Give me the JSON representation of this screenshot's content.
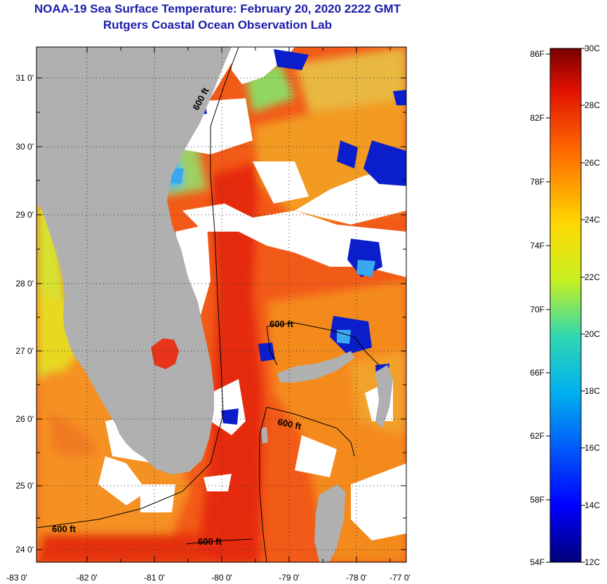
{
  "header": {
    "title": "NOAA-19 Sea Surface Temperature:  February 20, 2020 2222 GMT",
    "subtitle": "Rutgers Coastal Ocean Observation Lab"
  },
  "map": {
    "lat_labels": [
      "31 0'",
      "30 0'",
      "29 0'",
      "28 0'",
      "27 0'",
      "26 0'",
      "25 0'",
      "24 0'"
    ],
    "lon_labels": [
      "-83 0'",
      "-82 0'",
      "-81 0'",
      "-80 0'",
      "-79 0'",
      "-78 0'",
      "-77 0'"
    ],
    "contour_labels": [
      "600 ft",
      "600 ft",
      "600 ft",
      "600 ft",
      "600 ft"
    ],
    "land_color": "#b0b0b0",
    "cloud_color": "#ffffff"
  },
  "colorbar": {
    "fahrenheit_labels": [
      "86F",
      "82F",
      "78F",
      "74F",
      "70F",
      "66F",
      "62F",
      "58F",
      "54F"
    ],
    "celsius_labels": [
      "30C",
      "28C",
      "26C",
      "24C",
      "22C",
      "20C",
      "18C",
      "16C",
      "14C",
      "12C"
    ]
  }
}
